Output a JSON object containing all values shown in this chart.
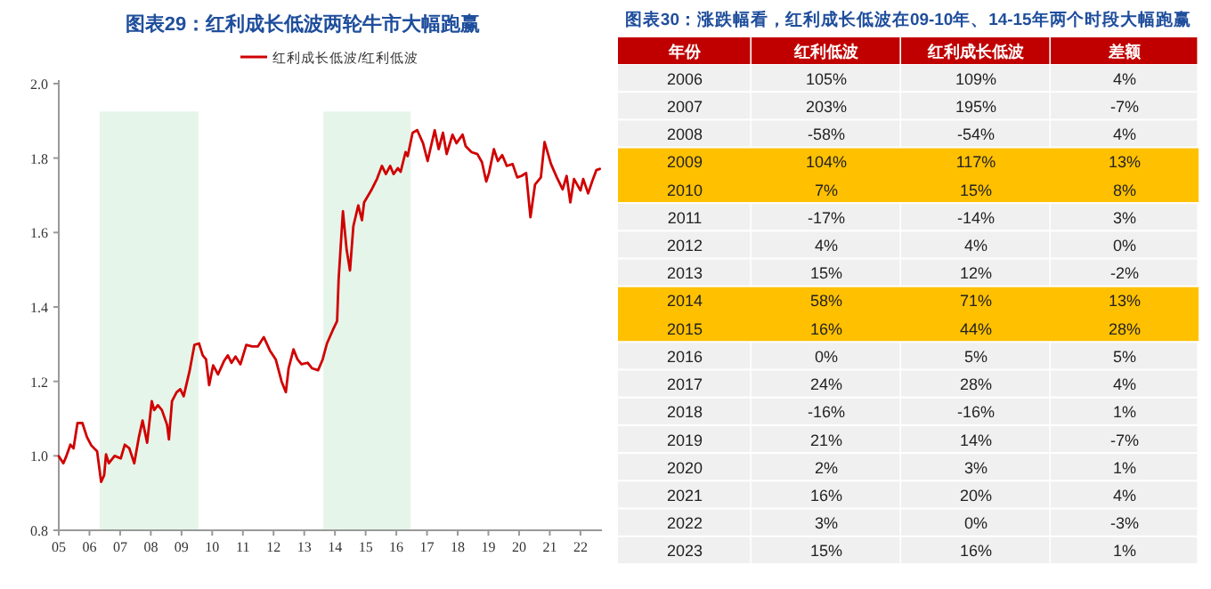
{
  "chart_data": [
    {
      "type": "line",
      "title": "图表29：红利成长低波两轮牛市大幅跑赢",
      "x": [
        2005.0,
        2005.15,
        2005.25,
        2005.38,
        2005.48,
        2005.61,
        2005.77,
        2005.92,
        2006.06,
        2006.25,
        2006.38,
        2006.48,
        2006.54,
        2006.63,
        2006.82,
        2007.02,
        2007.15,
        2007.3,
        2007.46,
        2007.61,
        2007.73,
        2007.88,
        2008.03,
        2008.11,
        2008.23,
        2008.36,
        2008.53,
        2008.59,
        2008.69,
        2008.84,
        2008.96,
        2009.07,
        2009.26,
        2009.42,
        2009.57,
        2009.69,
        2009.8,
        2009.9,
        2010.03,
        2010.19,
        2010.38,
        2010.51,
        2010.63,
        2010.76,
        2010.92,
        2011.11,
        2011.3,
        2011.49,
        2011.68,
        2011.88,
        2012.07,
        2012.26,
        2012.4,
        2012.49,
        2012.65,
        2012.78,
        2012.91,
        2013.11,
        2013.26,
        2013.45,
        2013.6,
        2013.74,
        2013.93,
        2014.07,
        2014.12,
        2014.26,
        2014.38,
        2014.49,
        2014.6,
        2014.76,
        2014.88,
        2014.95,
        2015.18,
        2015.37,
        2015.53,
        2015.66,
        2015.8,
        2015.91,
        2016.05,
        2016.14,
        2016.3,
        2016.37,
        2016.53,
        2016.68,
        2016.87,
        2017.02,
        2017.25,
        2017.38,
        2017.52,
        2017.64,
        2017.83,
        2017.96,
        2018.16,
        2018.26,
        2018.45,
        2018.64,
        2018.79,
        2018.93,
        2019.02,
        2019.18,
        2019.31,
        2019.45,
        2019.6,
        2019.79,
        2019.94,
        2020.08,
        2020.23,
        2020.37,
        2020.52,
        2020.71,
        2020.83,
        2021.04,
        2021.23,
        2021.42,
        2021.55,
        2021.67,
        2021.79,
        2022.0,
        2022.09,
        2022.25,
        2022.38,
        2022.52,
        2022.63
      ],
      "series": [
        {
          "name": "红利成长低波/红利低波",
          "color": "#d00000",
          "values": [
            0.999,
            0.98,
            1.0,
            1.03,
            1.02,
            1.088,
            1.088,
            1.05,
            1.028,
            1.012,
            0.93,
            0.948,
            1.004,
            0.98,
            1.0,
            0.993,
            1.03,
            1.02,
            0.98,
            1.05,
            1.095,
            1.035,
            1.147,
            1.123,
            1.136,
            1.123,
            1.083,
            1.044,
            1.147,
            1.171,
            1.179,
            1.16,
            1.227,
            1.298,
            1.302,
            1.27,
            1.259,
            1.19,
            1.243,
            1.219,
            1.254,
            1.27,
            1.25,
            1.267,
            1.246,
            1.298,
            1.294,
            1.294,
            1.319,
            1.283,
            1.259,
            1.2,
            1.171,
            1.235,
            1.286,
            1.259,
            1.246,
            1.25,
            1.235,
            1.23,
            1.259,
            1.302,
            1.338,
            1.362,
            1.475,
            1.657,
            1.554,
            1.498,
            1.617,
            1.673,
            1.633,
            1.681,
            1.713,
            1.744,
            1.779,
            1.757,
            1.779,
            1.757,
            1.773,
            1.763,
            1.816,
            1.805,
            1.868,
            1.875,
            1.84,
            1.792,
            1.875,
            1.824,
            1.868,
            1.811,
            1.863,
            1.84,
            1.863,
            1.832,
            1.816,
            1.811,
            1.789,
            1.737,
            1.76,
            1.824,
            1.792,
            1.808,
            1.779,
            1.784,
            1.748,
            1.752,
            1.76,
            1.641,
            1.729,
            1.748,
            1.843,
            1.784,
            1.748,
            1.716,
            1.752,
            1.681,
            1.744,
            1.713,
            1.744,
            1.705,
            1.737,
            1.768,
            1.771
          ]
        }
      ],
      "xlim": [
        2005,
        2022.7
      ],
      "xticks": [
        {
          "value": 2005,
          "label": "05"
        },
        {
          "value": 2006,
          "label": "06"
        },
        {
          "value": 2007,
          "label": "07"
        },
        {
          "value": 2008,
          "label": "08"
        },
        {
          "value": 2009,
          "label": "09"
        },
        {
          "value": 2010,
          "label": "10"
        },
        {
          "value": 2011,
          "label": "11"
        },
        {
          "value": 2012,
          "label": "12"
        },
        {
          "value": 2013,
          "label": "13"
        },
        {
          "value": 2014,
          "label": "14"
        },
        {
          "value": 2015,
          "label": "15"
        },
        {
          "value": 2016,
          "label": "16"
        },
        {
          "value": 2017,
          "label": "17"
        },
        {
          "value": 2018,
          "label": "18"
        },
        {
          "value": 2019,
          "label": "19"
        },
        {
          "value": 2020,
          "label": "20"
        },
        {
          "value": 2021,
          "label": "21"
        },
        {
          "value": 2022,
          "label": "22"
        }
      ],
      "ylim": [
        0.8,
        2.0
      ],
      "yticks": [
        0.8,
        {
          "value": 1,
          "label": "1.0"
        },
        1.2,
        1.4,
        1.6,
        1.8,
        {
          "value": 2,
          "label": "2.0"
        }
      ],
      "bands": [
        {
          "axis": "x",
          "from": 2006.33,
          "to": 2009.55,
          "color": "#e6f5ea"
        },
        {
          "axis": "x",
          "from": 2013.62,
          "to": 2016.47,
          "color": "#e6f5ea"
        }
      ],
      "legend": "top",
      "grid": false
    },
    {
      "type": "heatmap",
      "title": "图表30：涨跌幅看，红利成长低波在09-10年、14-15年两个时段大幅跑赢",
      "ylabel": "年份",
      "categories": [
        "红利低波",
        "红利成长低波",
        "差额"
      ],
      "y_categories": [
        "2006",
        "2007",
        "2008",
        "2009",
        "2010",
        "2011",
        "2012",
        "2013",
        "2014",
        "2015",
        "2016",
        "2017",
        "2018",
        "2019",
        "2020",
        "2021",
        "2022",
        "2023"
      ],
      "cells": [
        [
          "105%",
          "109%",
          "4%"
        ],
        [
          "203%",
          "195%",
          "-7%"
        ],
        [
          "-58%",
          "-54%",
          "4%"
        ],
        [
          "104%",
          "117%",
          "13%"
        ],
        [
          "7%",
          "15%",
          "8%"
        ],
        [
          "-17%",
          "-14%",
          "3%"
        ],
        [
          "4%",
          "4%",
          "0%"
        ],
        [
          "15%",
          "12%",
          "-2%"
        ],
        [
          "58%",
          "71%",
          "13%"
        ],
        [
          "16%",
          "44%",
          "28%"
        ],
        [
          "0%",
          "5%",
          "5%"
        ],
        [
          "24%",
          "28%",
          "4%"
        ],
        [
          "-16%",
          "-16%",
          "1%"
        ],
        [
          "21%",
          "14%",
          "-7%"
        ],
        [
          "2%",
          "3%",
          "1%"
        ],
        [
          "16%",
          "20%",
          "4%"
        ],
        [
          "3%",
          "0%",
          "-3%"
        ],
        [
          "15%",
          "16%",
          "1%"
        ]
      ],
      "color": "#f0f0f0",
      "bands": [
        {
          "axis": "y",
          "from": "2009",
          "to": "2010",
          "color": "#ffc000"
        },
        {
          "axis": "y",
          "from": "2014",
          "to": "2015",
          "color": "#ffc000"
        }
      ]
    }
  ]
}
